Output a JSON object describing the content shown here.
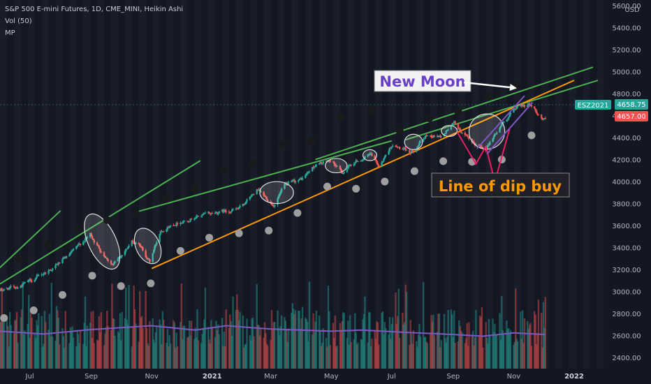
{
  "legend": {
    "title": "S&P 500 E-mini Futures, 1D, CME_MINI, Heikin Ashi",
    "vol": "Vol (50)",
    "mp": "MP"
  },
  "currency": "USD",
  "price_tags": {
    "symbol": "ESZ2021",
    "last": "4658.75",
    "second": "4657.00",
    "symbol_color": "#26a69a",
    "last_color": "#26a69a",
    "second_color": "#ef5350"
  },
  "annotations": {
    "new_moon": "New Moon",
    "dip_buy": "Line of dip buy"
  },
  "colors": {
    "background": "#131722",
    "stripe": "#1f2230",
    "up": "#26a69a",
    "down": "#ef5350",
    "trend_green": "#4caf50",
    "trend_orange": "#ff9800",
    "vol_ma": "#7e57c2",
    "moon_dark": "#1a1a1a",
    "moon_full": "#9e9e9e",
    "new_moon_text": "#6a3fc8",
    "dip_text": "#ff9800"
  },
  "chart_data": {
    "type": "candlestick",
    "title": "S&P 500 E-mini Futures, 1D, CME_MINI, Heikin Ashi",
    "y_axis": {
      "ticks": [
        "5600.00",
        "5400.00",
        "5200.00",
        "5000.00",
        "4800.00",
        "4600.00",
        "4400.00",
        "4200.00",
        "4000.00",
        "3800.00",
        "3600.00",
        "3400.00",
        "3200.00",
        "3000.00",
        "2800.00",
        "2600.00",
        "2400.00"
      ],
      "range": [
        2300,
        5650
      ]
    },
    "x_axis": {
      "ticks": [
        {
          "label": "Jul",
          "date": "2020-07-01",
          "bold": false
        },
        {
          "label": "Sep",
          "date": "2020-09-01",
          "bold": false
        },
        {
          "label": "Nov",
          "date": "2020-11-01",
          "bold": false
        },
        {
          "label": "2021",
          "date": "2021-01-01",
          "bold": true
        },
        {
          "label": "Mar",
          "date": "2021-03-01",
          "bold": false
        },
        {
          "label": "May",
          "date": "2021-05-01",
          "bold": false
        },
        {
          "label": "Jul",
          "date": "2021-07-01",
          "bold": false
        },
        {
          "label": "Sep",
          "date": "2021-09-01",
          "bold": false
        },
        {
          "label": "Nov",
          "date": "2021-11-01",
          "bold": false
        },
        {
          "label": "2022",
          "date": "2022-01-01",
          "bold": true
        }
      ],
      "range": [
        "2020-06-01",
        "2022-02-01"
      ]
    },
    "price_path": [
      [
        "2020-06-01",
        3010
      ],
      [
        "2020-06-20",
        3050
      ],
      [
        "2020-07-05",
        3110
      ],
      [
        "2020-07-25",
        3220
      ],
      [
        "2020-08-10",
        3330
      ],
      [
        "2020-08-31",
        3520
      ],
      [
        "2020-09-10",
        3380
      ],
      [
        "2020-09-23",
        3240
      ],
      [
        "2020-10-12",
        3450
      ],
      [
        "2020-10-20",
        3420
      ],
      [
        "2020-10-30",
        3270
      ],
      [
        "2020-11-10",
        3560
      ],
      [
        "2020-11-25",
        3620
      ],
      [
        "2020-12-15",
        3680
      ],
      [
        "2021-01-05",
        3720
      ],
      [
        "2021-01-28",
        3750
      ],
      [
        "2021-02-15",
        3920
      ],
      [
        "2021-03-04",
        3790
      ],
      [
        "2021-03-15",
        3960
      ],
      [
        "2021-04-01",
        4020
      ],
      [
        "2021-04-15",
        4150
      ],
      [
        "2021-05-01",
        4190
      ],
      [
        "2021-05-12",
        4080
      ],
      [
        "2021-05-25",
        4180
      ],
      [
        "2021-06-10",
        4240
      ],
      [
        "2021-06-18",
        4140
      ],
      [
        "2021-07-01",
        4330
      ],
      [
        "2021-07-20",
        4260
      ],
      [
        "2021-08-05",
        4420
      ],
      [
        "2021-08-20",
        4410
      ],
      [
        "2021-09-02",
        4530
      ],
      [
        "2021-09-20",
        4340
      ],
      [
        "2021-10-04",
        4310
      ],
      [
        "2021-10-20",
        4520
      ],
      [
        "2021-11-05",
        4690
      ],
      [
        "2021-11-18",
        4700
      ],
      [
        "2021-11-30",
        4570
      ],
      [
        "2021-12-03",
        4560
      ]
    ],
    "trendlines": [
      {
        "color": "green",
        "points": [
          [
            "2020-05-25",
            3160
          ],
          [
            "2020-08-01",
            3735
          ]
        ]
      },
      {
        "color": "green",
        "points": [
          [
            "2020-06-01",
            3070
          ],
          [
            "2020-12-20",
            4190
          ]
        ]
      },
      {
        "color": "green",
        "points": [
          [
            "2020-10-15",
            3720
          ],
          [
            "2021-07-01",
            4370
          ]
        ]
      },
      {
        "color": "green",
        "points": [
          [
            "2021-04-15",
            4200
          ],
          [
            "2022-01-20",
            5040
          ]
        ]
      },
      {
        "color": "green",
        "points": [
          [
            "2021-07-15",
            4380
          ],
          [
            "2022-01-25",
            4920
          ]
        ]
      },
      {
        "color": "orange",
        "points": [
          [
            "2020-11-01",
            3210
          ],
          [
            "2022-01-01",
            4920
          ]
        ]
      }
    ],
    "highlight_ellipses": [
      {
        "center": [
          "2020-09-12",
          3455
        ],
        "rx_days": 14,
        "ry_price": 270,
        "rotate": -25
      },
      {
        "center": [
          "2020-10-28",
          3415
        ],
        "rx_days": 12,
        "ry_price": 170,
        "rotate": -25
      },
      {
        "center": [
          "2021-03-07",
          3900
        ],
        "rx_days": 17,
        "ry_price": 100,
        "rotate": 0
      },
      {
        "center": [
          "2021-05-06",
          4145
        ],
        "rx_days": 11,
        "ry_price": 65,
        "rotate": 0
      },
      {
        "center": [
          "2021-06-09",
          4240
        ],
        "rx_days": 7,
        "ry_price": 50,
        "rotate": 0
      },
      {
        "center": [
          "2021-07-23",
          4360
        ],
        "rx_days": 9,
        "ry_price": 70,
        "rotate": 0
      },
      {
        "center": [
          "2021-08-28",
          4460
        ],
        "rx_days": 8,
        "ry_price": 50,
        "rotate": 0
      },
      {
        "center": [
          "2021-10-05",
          4455
        ],
        "rx_days": 18,
        "ry_price": 160,
        "rotate": 0
      }
    ],
    "new_moons": [
      [
        "2020-06-20",
        3300
      ],
      [
        "2020-07-20",
        3420
      ],
      [
        "2020-08-19",
        3575
      ],
      [
        "2020-09-17",
        3650
      ],
      [
        "2020-10-16",
        3710
      ],
      [
        "2020-11-15",
        3840
      ],
      [
        "2020-12-14",
        3935
      ],
      [
        "2021-01-13",
        4105
      ],
      [
        "2021-02-11",
        4165
      ],
      [
        "2021-03-13",
        4335
      ],
      [
        "2021-04-11",
        4375
      ],
      [
        "2021-05-11",
        4585
      ],
      [
        "2021-06-10",
        4650
      ],
      [
        "2021-07-09",
        4460
      ],
      [
        "2021-08-08",
        4575
      ],
      [
        "2021-09-06",
        4635
      ],
      [
        "2021-10-06",
        4770
      ],
      [
        "2021-11-04",
        4875
      ]
    ],
    "full_moons": [
      [
        "2020-06-05",
        2760
      ],
      [
        "2020-07-05",
        2830
      ],
      [
        "2020-08-03",
        2970
      ],
      [
        "2020-09-02",
        3145
      ],
      [
        "2020-10-01",
        3050
      ],
      [
        "2020-10-31",
        3075
      ],
      [
        "2020-11-30",
        3370
      ],
      [
        "2020-12-29",
        3490
      ],
      [
        "2021-01-28",
        3530
      ],
      [
        "2021-02-27",
        3555
      ],
      [
        "2021-03-28",
        3715
      ],
      [
        "2021-04-27",
        3955
      ],
      [
        "2021-05-26",
        3935
      ],
      [
        "2021-06-24",
        4000
      ],
      [
        "2021-07-24",
        4095
      ],
      [
        "2021-08-22",
        4185
      ],
      [
        "2021-09-20",
        4180
      ],
      [
        "2021-10-20",
        4200
      ],
      [
        "2021-11-19",
        4420
      ]
    ],
    "volume_ma": [
      [
        "2020-06-01",
        2640
      ],
      [
        "2020-07-15",
        2615
      ],
      [
        "2020-09-01",
        2655
      ],
      [
        "2020-11-01",
        2690
      ],
      [
        "2020-12-15",
        2650
      ],
      [
        "2021-01-15",
        2690
      ],
      [
        "2021-03-01",
        2660
      ],
      [
        "2021-05-01",
        2640
      ],
      [
        "2021-06-01",
        2650
      ],
      [
        "2021-07-15",
        2630
      ],
      [
        "2021-09-01",
        2610
      ],
      [
        "2021-10-01",
        2595
      ],
      [
        "2021-11-01",
        2625
      ],
      [
        "2021-12-03",
        2610
      ]
    ]
  }
}
